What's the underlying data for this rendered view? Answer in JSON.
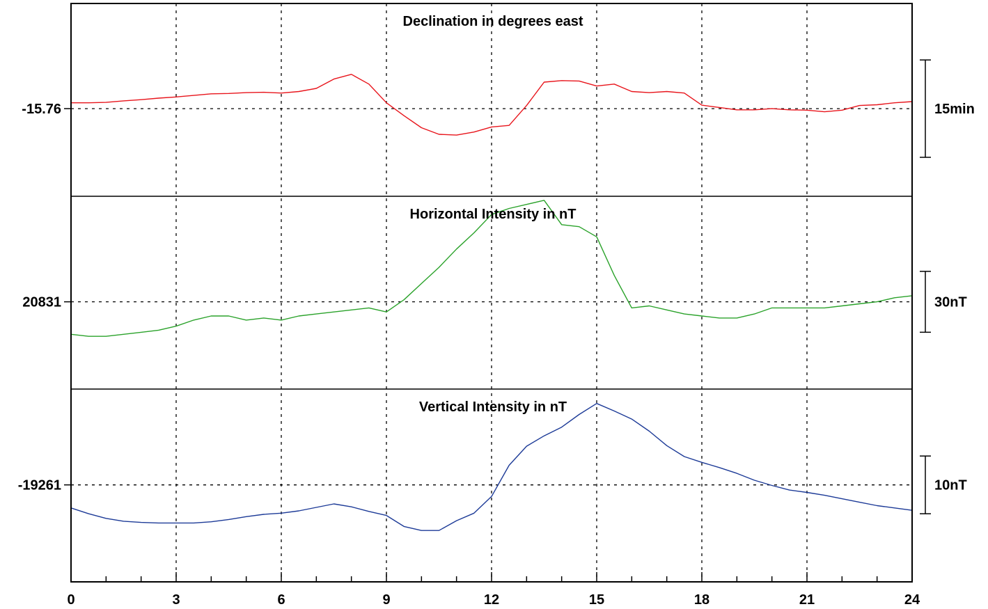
{
  "chart_data": {
    "type": "line",
    "x_ticks": [
      "0",
      "3",
      "6",
      "9",
      "12",
      "15",
      "18",
      "21",
      "24"
    ],
    "xlim": [
      0,
      24
    ],
    "grid": true,
    "panels": [
      {
        "title": "Declination in degrees east",
        "reference_label": "-15.76",
        "reference_value": -15.76,
        "scale_label": "15min",
        "scale_span": 0.25,
        "ylim": [
          -15.985,
          -15.49
        ],
        "color": "#e8141b",
        "x": [
          0,
          0.5,
          1,
          1.5,
          2,
          2.5,
          3,
          3.5,
          4,
          4.5,
          5,
          5.5,
          6,
          6.5,
          7,
          7.5,
          8,
          8.5,
          9,
          9.5,
          10,
          10.5,
          11,
          11.5,
          12,
          12.5,
          13,
          13.5,
          14,
          14.5,
          15,
          15.5,
          16,
          16.5,
          17,
          17.5,
          18,
          18.5,
          19,
          19.5,
          20,
          20.5,
          21,
          21.5,
          22,
          22.5,
          23,
          23.5,
          24
        ],
        "values": [
          -15.745,
          -15.745,
          -15.744,
          -15.74,
          -15.737,
          -15.733,
          -15.73,
          -15.726,
          -15.722,
          -15.721,
          -15.719,
          -15.718,
          -15.72,
          -15.716,
          -15.708,
          -15.684,
          -15.672,
          -15.697,
          -15.745,
          -15.778,
          -15.809,
          -15.826,
          -15.828,
          -15.82,
          -15.807,
          -15.803,
          -15.752,
          -15.692,
          -15.688,
          -15.689,
          -15.702,
          -15.697,
          -15.716,
          -15.719,
          -15.716,
          -15.72,
          -15.751,
          -15.757,
          -15.763,
          -15.763,
          -15.76,
          -15.763,
          -15.764,
          -15.768,
          -15.764,
          -15.752,
          -15.75,
          -15.745,
          -15.742
        ]
      },
      {
        "title": "Horizontal Intensity in nT",
        "reference_label": "20831",
        "reference_value": 20831,
        "scale_label": "30nT",
        "scale_span": 30,
        "ylim": [
          20788,
          20883
        ],
        "color": "#2aa22a",
        "x": [
          0,
          0.5,
          1,
          1.5,
          2,
          2.5,
          3,
          3.5,
          4,
          4.5,
          5,
          5.5,
          6,
          6.5,
          7,
          7.5,
          8,
          8.5,
          9,
          9.5,
          10,
          10.5,
          11,
          11.5,
          12,
          12.5,
          13,
          13.5,
          14,
          14.5,
          15,
          15.5,
          16,
          16.5,
          17,
          17.5,
          18,
          18.5,
          19,
          19.5,
          20,
          20.5,
          21,
          21.5,
          22,
          22.5,
          23,
          23.5,
          24
        ],
        "values": [
          20815,
          20814,
          20814,
          20815,
          20816,
          20817,
          20819,
          20822,
          20824,
          20824,
          20822,
          20823,
          20822,
          20824,
          20825,
          20826,
          20827,
          20828,
          20826,
          20832,
          20840,
          20848,
          20857,
          20865,
          20874,
          20877,
          20879,
          20881,
          20869,
          20868,
          20863,
          20844,
          20828,
          20829,
          20827,
          20825,
          20824,
          20823,
          20823,
          20825,
          20828,
          20828,
          20828,
          20828,
          20829,
          20830,
          20831,
          20833,
          20834
        ]
      },
      {
        "title": "Vertical Intensity in nT",
        "reference_label": "-19261",
        "reference_value": -19261,
        "scale_label": "10nT",
        "scale_span": 10,
        "ylim": [
          -19277.8,
          -19244.4
        ],
        "color": "#1c3a97",
        "x": [
          0,
          0.5,
          1,
          1.5,
          2,
          2.5,
          3,
          3.5,
          4,
          4.5,
          5,
          5.5,
          6,
          6.5,
          7,
          7.5,
          8,
          8.5,
          9,
          9.5,
          10,
          10.5,
          11,
          11.5,
          12,
          12.5,
          13,
          13.5,
          14,
          14.5,
          15,
          15.5,
          16,
          16.5,
          17,
          17.5,
          18,
          18.5,
          19,
          19.5,
          20,
          20.5,
          21,
          21.5,
          22,
          22.5,
          23,
          23.5,
          24
        ],
        "values": [
          -19265.0,
          -19266.0,
          -19266.8,
          -19267.3,
          -19267.5,
          -19267.6,
          -19267.6,
          -19267.6,
          -19267.4,
          -19267.0,
          -19266.5,
          -19266.1,
          -19265.9,
          -19265.5,
          -19264.9,
          -19264.3,
          -19264.8,
          -19265.6,
          -19266.3,
          -19268.2,
          -19268.9,
          -19268.9,
          -19267.2,
          -19265.9,
          -19263.0,
          -19257.6,
          -19254.3,
          -19252.5,
          -19251.0,
          -19248.8,
          -19246.9,
          -19248.2,
          -19249.6,
          -19251.7,
          -19254.2,
          -19256.1,
          -19257.1,
          -19258.0,
          -19259.0,
          -19260.2,
          -19261.1,
          -19261.9,
          -19262.3,
          -19262.8,
          -19263.4,
          -19264.0,
          -19264.6,
          -19265.0,
          -19265.4
        ]
      }
    ]
  }
}
